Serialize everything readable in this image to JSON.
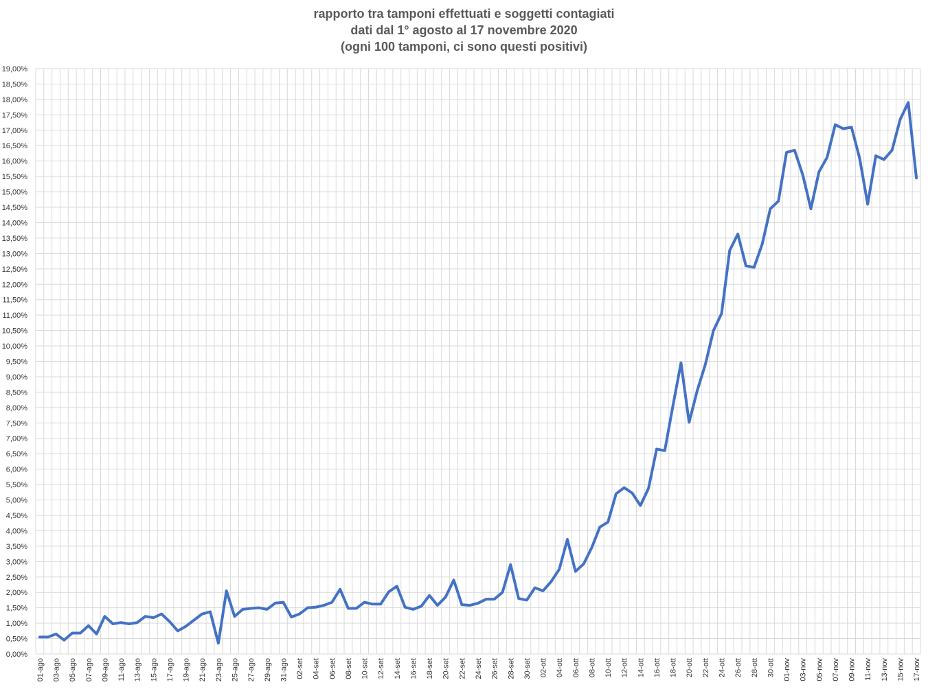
{
  "chart_data": {
    "type": "line",
    "title": [
      "rapporto tra tamponi effettuati e soggetti contagiati",
      "dati dal 1° agosto al 17 novembre 2020",
      "(ogni 100 tamponi, ci sono questi positivi)"
    ],
    "xlabel": "",
    "ylabel": "",
    "ylim": [
      0,
      19
    ],
    "y_ticks": [
      "0,00%",
      "0,50%",
      "1,00%",
      "1,50%",
      "2,00%",
      "2,50%",
      "3,00%",
      "3,50%",
      "4,00%",
      "4,50%",
      "5,00%",
      "5,50%",
      "6,00%",
      "6,50%",
      "7,00%",
      "7,50%",
      "8,00%",
      "8,50%",
      "9,00%",
      "9,50%",
      "10,00%",
      "10,50%",
      "11,00%",
      "11,50%",
      "12,00%",
      "12,50%",
      "13,00%",
      "13,50%",
      "14,00%",
      "14,50%",
      "15,00%",
      "15,50%",
      "16,00%",
      "16,50%",
      "17,00%",
      "17,50%",
      "18,00%",
      "18,50%",
      "19,00%"
    ],
    "grid": true,
    "legend": "none",
    "line_color": "#4472C4",
    "x_labels": [
      "01-ago",
      "03-ago",
      "05-ago",
      "07-ago",
      "09-ago",
      "11-ago",
      "13-ago",
      "15-ago",
      "17-ago",
      "19-ago",
      "21-ago",
      "23-ago",
      "25-ago",
      "27-ago",
      "29-ago",
      "31-ago",
      "02-set",
      "04-set",
      "06-set",
      "08-set",
      "10-set",
      "12-set",
      "14-set",
      "16-set",
      "18-set",
      "20-set",
      "22-set",
      "24-set",
      "26-set",
      "28-set",
      "30-set",
      "02-ott",
      "04-ott",
      "06-ott",
      "08-ott",
      "10-ott",
      "12-ott",
      "14-ott",
      "16-ott",
      "18-ott",
      "20-ott",
      "22-ott",
      "24-ott",
      "26-ott",
      "28-ott",
      "30-ott",
      "01-nov",
      "03-nov",
      "05-nov",
      "07-nov",
      "09-nov",
      "11-nov",
      "13-nov",
      "15-nov",
      "17-nov"
    ],
    "series": [
      {
        "values": [
          0.55,
          0.55,
          0.65,
          0.45,
          0.68,
          0.68,
          0.92,
          0.65,
          1.22,
          0.98,
          1.02,
          0.98,
          1.02,
          1.22,
          1.18,
          1.3,
          1.05,
          0.75,
          0.9,
          1.1,
          1.3,
          1.37,
          0.35,
          2.05,
          1.22,
          1.45,
          1.48,
          1.5,
          1.45,
          1.65,
          1.68,
          1.2,
          1.3,
          1.5,
          1.52,
          1.58,
          1.68,
          2.1,
          1.48,
          1.48,
          1.68,
          1.62,
          1.62,
          2.02,
          2.2,
          1.52,
          1.45,
          1.55,
          1.9,
          1.58,
          1.85,
          2.4,
          1.6,
          1.58,
          1.65,
          1.78,
          1.78,
          2.0,
          2.9,
          1.8,
          1.75,
          2.15,
          2.05,
          2.35,
          2.75,
          3.72,
          2.68,
          2.92,
          3.45,
          4.12,
          4.28,
          5.2,
          5.4,
          5.22,
          4.82,
          5.38,
          6.65,
          6.6,
          8.05,
          9.45,
          7.52,
          8.55,
          9.4,
          10.5,
          11.05,
          13.1,
          13.63,
          12.6,
          12.55,
          13.3,
          14.45,
          14.7,
          16.28,
          16.35,
          15.55,
          14.45,
          15.65,
          16.12,
          17.18,
          17.05,
          17.1,
          16.1,
          14.6,
          16.17,
          16.05,
          16.35,
          17.35,
          17.9,
          15.45
        ]
      }
    ]
  }
}
